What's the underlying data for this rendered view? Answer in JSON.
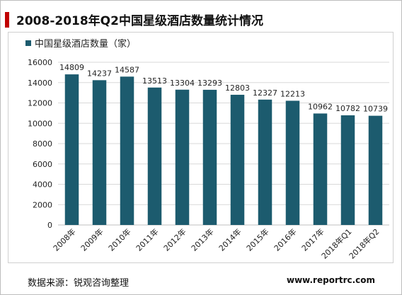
{
  "page": {
    "title": "2008-2018年Q2中国星级酒店数量统计情况",
    "source": "数据来源：锐观咨询整理",
    "url": "www.reportrc.com"
  },
  "chart_data": {
    "type": "bar",
    "title": "",
    "xlabel": "",
    "ylabel": "",
    "categories": [
      "2008年",
      "2009年",
      "2010年",
      "2011年",
      "2012年",
      "2013年",
      "2014年",
      "2015年",
      "2016年",
      "2017年",
      "2018年Q1",
      "2018年Q2"
    ],
    "series": [
      {
        "name": "中国星级酒店数量（家）",
        "values": [
          14809,
          14237,
          14587,
          13513,
          13304,
          13293,
          12803,
          12327,
          12213,
          10962,
          10782,
          10739
        ],
        "color": "#1c5b6e"
      }
    ],
    "ylim": [
      0,
      16000
    ],
    "yticks": [
      0,
      2000,
      4000,
      6000,
      8000,
      10000,
      12000,
      14000,
      16000
    ],
    "grid": true,
    "legend_position": "top-left",
    "data_labels": true
  }
}
